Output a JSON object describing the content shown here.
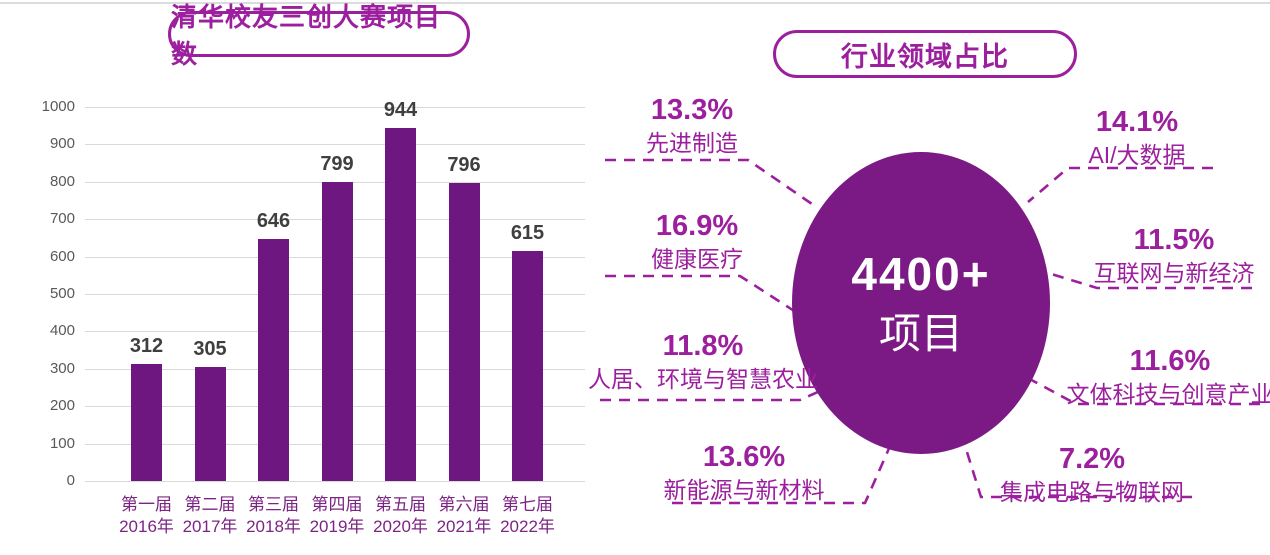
{
  "colors": {
    "accent": "#9c1f9e",
    "bar": "#6e1781",
    "circle": "#7b1a85",
    "axis_label_text": "#7c2483",
    "value_label_text": "#3f3f3f",
    "tick_text": "#595959",
    "gridline": "#d9d9d9"
  },
  "chart_data": [
    {
      "type": "bar",
      "title": "清华校友三创大赛项目数",
      "categories": [
        [
          "第一届",
          "2016年"
        ],
        [
          "第二届",
          "2017年"
        ],
        [
          "第三届",
          "2018年"
        ],
        [
          "第四届",
          "2019年"
        ],
        [
          "第五届",
          "2020年"
        ],
        [
          "第六届",
          "2021年"
        ],
        [
          "第七届",
          "2022年"
        ]
      ],
      "values": [
        312,
        305,
        646,
        799,
        944,
        796,
        615
      ],
      "xlabel": "",
      "ylabel": "",
      "ylim": [
        0,
        1000
      ],
      "ytick_step": 100,
      "grid": true,
      "legend": false
    },
    {
      "type": "pie",
      "title": "行业领域占比",
      "center_value": "4400+",
      "center_label": "项目",
      "legend_position": "around-circle",
      "slices": [
        {
          "label": "先进制造",
          "pct": "13.3%",
          "value": 13.3
        },
        {
          "label": "健康医疗",
          "pct": "16.9%",
          "value": 16.9
        },
        {
          "label": "人居、环境与智慧农业",
          "pct": "11.8%",
          "value": 11.8
        },
        {
          "label": "新能源与新材料",
          "pct": "13.6%",
          "value": 13.6
        },
        {
          "label": "AI/大数据",
          "pct": "14.1%",
          "value": 14.1
        },
        {
          "label": "互联网与新经济",
          "pct": "11.5%",
          "value": 11.5
        },
        {
          "label": "文体科技与创意产业",
          "pct": "11.6%",
          "value": 11.6
        },
        {
          "label": "集成电路与物联网",
          "pct": "7.2%",
          "value": 7.2
        }
      ]
    }
  ]
}
